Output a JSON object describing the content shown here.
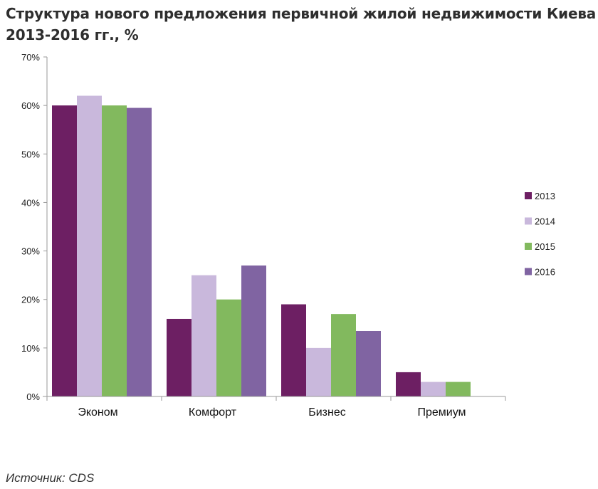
{
  "chart_data": {
    "type": "bar",
    "title_lines": [
      "Структура нового предложения первичной жилой недвижимости Киева",
      "2013-2016 гг., %"
    ],
    "categories": [
      "Эконом",
      "Комфорт",
      "Бизнес",
      "Премиум"
    ],
    "series": [
      {
        "name": "2013",
        "color": "#6d1f63",
        "values": [
          60,
          16,
          19,
          5
        ]
      },
      {
        "name": "2014",
        "color": "#c9b8dc",
        "values": [
          62,
          25,
          10,
          3
        ]
      },
      {
        "name": "2015",
        "color": "#82b95e",
        "values": [
          60,
          20,
          17,
          3
        ]
      },
      {
        "name": "2016",
        "color": "#8064a2",
        "values": [
          59.5,
          27,
          13.5,
          null
        ]
      }
    ],
    "yticks": [
      "0%",
      "10%",
      "20%",
      "30%",
      "40%",
      "50%",
      "60%",
      "70%"
    ],
    "ylim": [
      0,
      70
    ],
    "ytick_step": 10,
    "xlabel": "",
    "ylabel": "",
    "grid": false,
    "legend_position": "right"
  },
  "source": "Источник: CDS"
}
